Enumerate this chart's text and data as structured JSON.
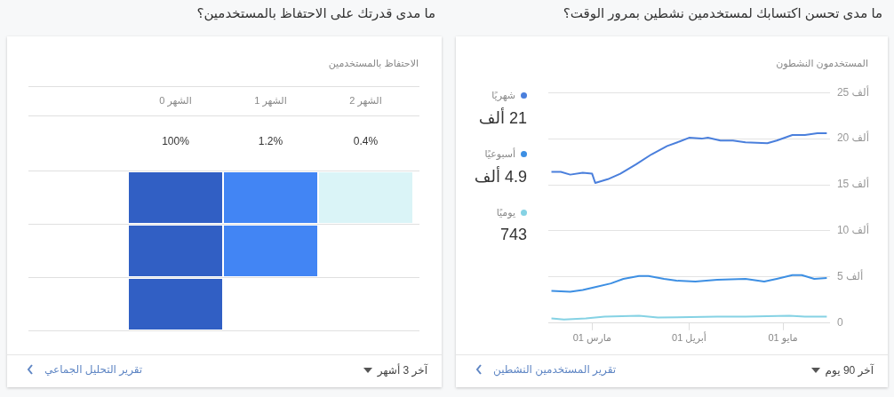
{
  "chart_data": [
    {
      "type": "line",
      "title": "ما مدى تحسن اكتسابك لمستخدمين نشطين بمرور الوقت؟",
      "subtitle": "المستخدمون النشطون",
      "xlim": [
        "--02-15",
        "--05-16"
      ],
      "xticks": [
        {
          "value": "--03-01",
          "label": "01 مارس"
        },
        {
          "value": "--04-01",
          "label": "01 أبريل"
        },
        {
          "value": "--05-01",
          "label": "01 مايو"
        }
      ],
      "ylim": [
        0,
        25
      ],
      "yticks": [
        0,
        {
          "value": 5,
          "label": "5 ألف"
        },
        {
          "value": 10,
          "label": "10 ألف"
        },
        {
          "value": 15,
          "label": "15 ألف"
        },
        {
          "value": 20,
          "label": "20 ألف"
        },
        {
          "value": 25,
          "label": "25 ألف"
        }
      ],
      "grid": "y",
      "legend": "left",
      "marker": "none",
      "line_style": "solid",
      "series": [
        {
          "name": "شهريًا",
          "color": "#4a7fdc",
          "x": [
            "--02-16",
            "--02-19",
            "--02-22",
            "--02-26",
            "--03-01",
            "--03-02",
            "--03-06",
            "--03-10",
            "--03-15",
            "--03-20",
            "--03-25",
            "--03-29",
            "--04-01",
            "--04-05",
            "--04-07",
            "--04-11",
            "--04-15",
            "--04-19",
            "--04-26",
            "--04-29",
            "--05-04",
            "--05-08",
            "--05-12",
            "--05-15"
          ],
          "values": [
            16.4,
            16.4,
            16.1,
            16.3,
            16.2,
            15.2,
            15.6,
            16.2,
            17.2,
            18.3,
            19.2,
            19.7,
            20.1,
            20.0,
            20.1,
            19.8,
            19.8,
            19.6,
            19.5,
            19.8,
            20.4,
            20.4,
            20.6,
            20.6
          ]
        },
        {
          "name": "أسبوعيًا",
          "color": "#3d8fe3",
          "x": [
            "--02-16",
            "--02-22",
            "--02-26",
            "--03-02",
            "--03-07",
            "--03-11",
            "--03-16",
            "--03-19",
            "--03-24",
            "--03-28",
            "--04-03",
            "--04-10",
            "--04-19",
            "--04-25",
            "--04-29",
            "--05-04",
            "--05-07",
            "--05-11",
            "--05-15"
          ],
          "values": [
            3.5,
            3.4,
            3.6,
            3.9,
            4.3,
            4.8,
            5.1,
            5.1,
            4.8,
            4.6,
            4.5,
            4.7,
            4.8,
            4.5,
            4.8,
            5.2,
            5.2,
            4.8,
            4.9
          ]
        },
        {
          "name": "يوميًا",
          "color": "#85d2e4",
          "x": [
            "--02-16",
            "--02-20",
            "--02-27",
            "--03-05",
            "--03-16",
            "--03-22",
            "--04-10",
            "--04-19",
            "--05-03",
            "--05-08",
            "--05-15"
          ],
          "values": [
            0.5,
            0.4,
            0.5,
            0.7,
            0.8,
            0.6,
            0.7,
            0.7,
            0.8,
            0.7,
            0.7
          ]
        }
      ],
      "annotations": [
        "21 ألف",
        "4.9 ألف",
        "743",
        "آخر 90 يوم",
        "تقرير المستخدمين النشطين"
      ]
    },
    {
      "type": "other",
      "title": "ما مدى قدرتك على الاحتفاظ بالمستخدمين؟",
      "subtitle": "الاحتفاظ بالمستخدمين",
      "categories": [
        "الشهر 0",
        "الشهر 1",
        "الشهر 2"
      ],
      "annotations": [
        "100%",
        "1.2%",
        "0.4%",
        "آخر 3 أشهر",
        "تقرير التحليل الجماعي"
      ]
    }
  ]
}
